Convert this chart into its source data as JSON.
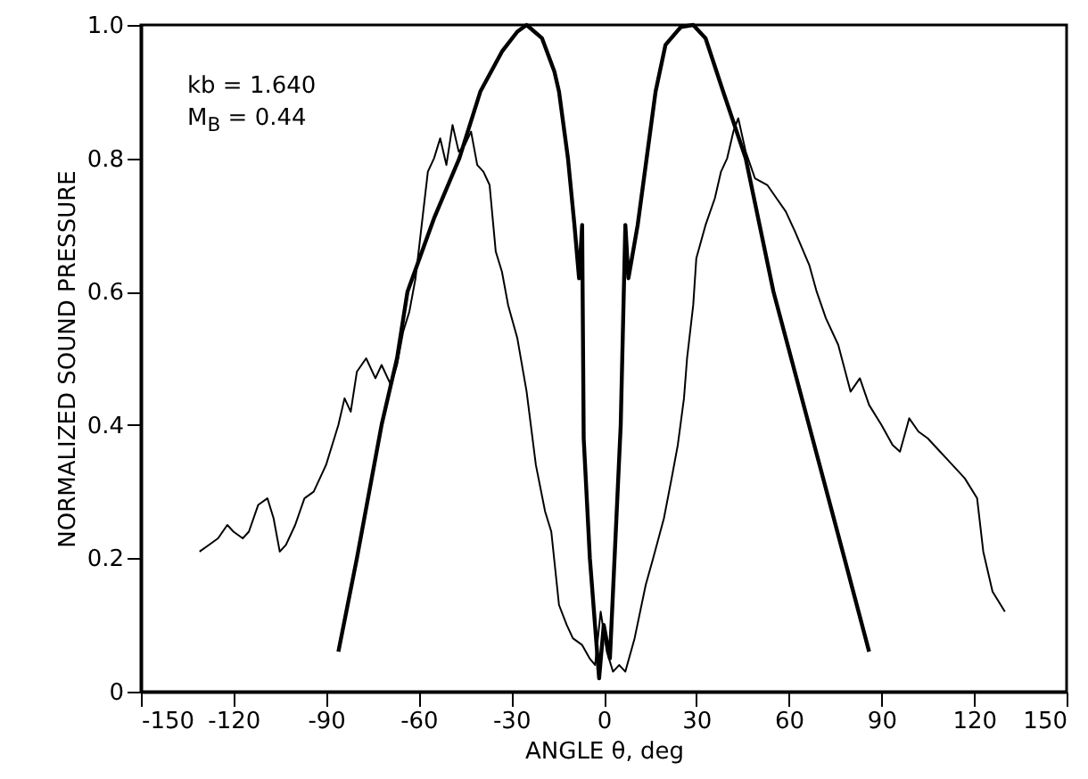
{
  "chart_data": {
    "type": "line",
    "xlabel": "ANGLE θ, deg",
    "ylabel": "NORMALIZED SOUND PRESSURE",
    "annotations": [
      "kb = 1.640",
      "M$_{B}$ = 0.44"
    ],
    "xlim": [
      -150,
      150
    ],
    "xticks": [
      -150,
      -120,
      -90,
      -60,
      -30,
      0,
      30,
      60,
      90,
      120,
      150
    ],
    "ylim": [
      0,
      1
    ],
    "yticks": [
      0,
      0.2,
      0.4,
      0.6,
      0.8,
      {
        "value": 1,
        "label": "1.0"
      }
    ],
    "grid": false,
    "marker": "none",
    "line_style": "solid",
    "series": [
      {
        "color": "#000000",
        "x": [
          -131,
          -128,
          -125,
          -122,
          -120,
          -117,
          -115,
          -112,
          -109,
          -107,
          -105,
          -103,
          -100,
          -97,
          -94,
          -92,
          -90,
          -88,
          -86,
          -84,
          -82,
          -80,
          -77,
          -74,
          -72,
          -69,
          -67,
          -65,
          -63,
          -61,
          -59,
          -57,
          -55,
          -53,
          -51,
          -49,
          -47,
          -45,
          -43,
          -41,
          -39,
          -37,
          -35,
          -33,
          -31,
          -28,
          -25,
          -22,
          -19,
          -17,
          -14.5,
          -12,
          -10,
          -7,
          -4.6,
          -2.8,
          -1,
          1,
          3,
          5,
          7,
          10,
          13.6,
          16,
          19.5,
          22,
          24,
          26,
          27,
          29,
          30,
          33,
          36,
          38,
          40,
          42,
          43.6,
          46,
          49,
          53,
          56,
          59,
          62,
          66.6,
          69,
          72,
          76,
          80,
          83,
          86,
          90,
          93.6,
          96,
          99,
          102,
          105,
          109,
          113,
          117,
          121,
          123,
          126,
          130
        ],
        "values": [
          0.21,
          0.22,
          0.23,
          0.25,
          0.24,
          0.23,
          0.24,
          0.28,
          0.29,
          0.26,
          0.21,
          0.22,
          0.25,
          0.29,
          0.3,
          0.32,
          0.34,
          0.37,
          0.4,
          0.44,
          0.42,
          0.48,
          0.5,
          0.47,
          0.49,
          0.46,
          0.49,
          0.54,
          0.57,
          0.62,
          0.7,
          0.78,
          0.8,
          0.83,
          0.79,
          0.85,
          0.81,
          0.82,
          0.84,
          0.79,
          0.78,
          0.76,
          0.66,
          0.63,
          0.58,
          0.53,
          0.45,
          0.34,
          0.27,
          0.24,
          0.13,
          0.1,
          0.08,
          0.07,
          0.05,
          0.04,
          0.12,
          0.06,
          0.03,
          0.04,
          0.03,
          0.08,
          0.16,
          0.2,
          0.26,
          0.32,
          0.37,
          0.44,
          0.5,
          0.58,
          0.65,
          0.7,
          0.74,
          0.78,
          0.8,
          0.84,
          0.86,
          0.81,
          0.77,
          0.76,
          0.74,
          0.72,
          0.69,
          0.64,
          0.6,
          0.56,
          0.52,
          0.45,
          0.47,
          0.43,
          0.4,
          0.37,
          0.36,
          0.41,
          0.39,
          0.38,
          0.36,
          0.34,
          0.32,
          0.29,
          0.21,
          0.15,
          0.12
        ]
      },
      {
        "color": "#000000",
        "x": [
          -86,
          -80,
          -72,
          -67,
          -63.6,
          -55,
          -46.8,
          -40,
          -33,
          -28,
          -25,
          -20,
          -16,
          -14.5,
          -11.6,
          -9.5,
          -8,
          -7,
          -6.5,
          -4.5,
          -1.5,
          0,
          2,
          5.5,
          7,
          8,
          11,
          13.9,
          16.8,
          20,
          25,
          29,
          33,
          38.7,
          46,
          55,
          66.5,
          78,
          86
        ],
        "values": [
          0.06,
          0.2,
          0.4,
          0.5,
          0.6,
          0.71,
          0.8,
          0.9,
          0.96,
          0.99,
          1.0,
          0.98,
          0.93,
          0.9,
          0.8,
          0.7,
          0.62,
          0.7,
          0.38,
          0.2,
          0.02,
          0.1,
          0.05,
          0.4,
          0.7,
          0.62,
          0.7,
          0.8,
          0.9,
          0.97,
          0.997,
          1.0,
          0.98,
          0.9,
          0.8,
          0.6,
          0.4,
          0.2,
          0.06
        ]
      }
    ]
  }
}
